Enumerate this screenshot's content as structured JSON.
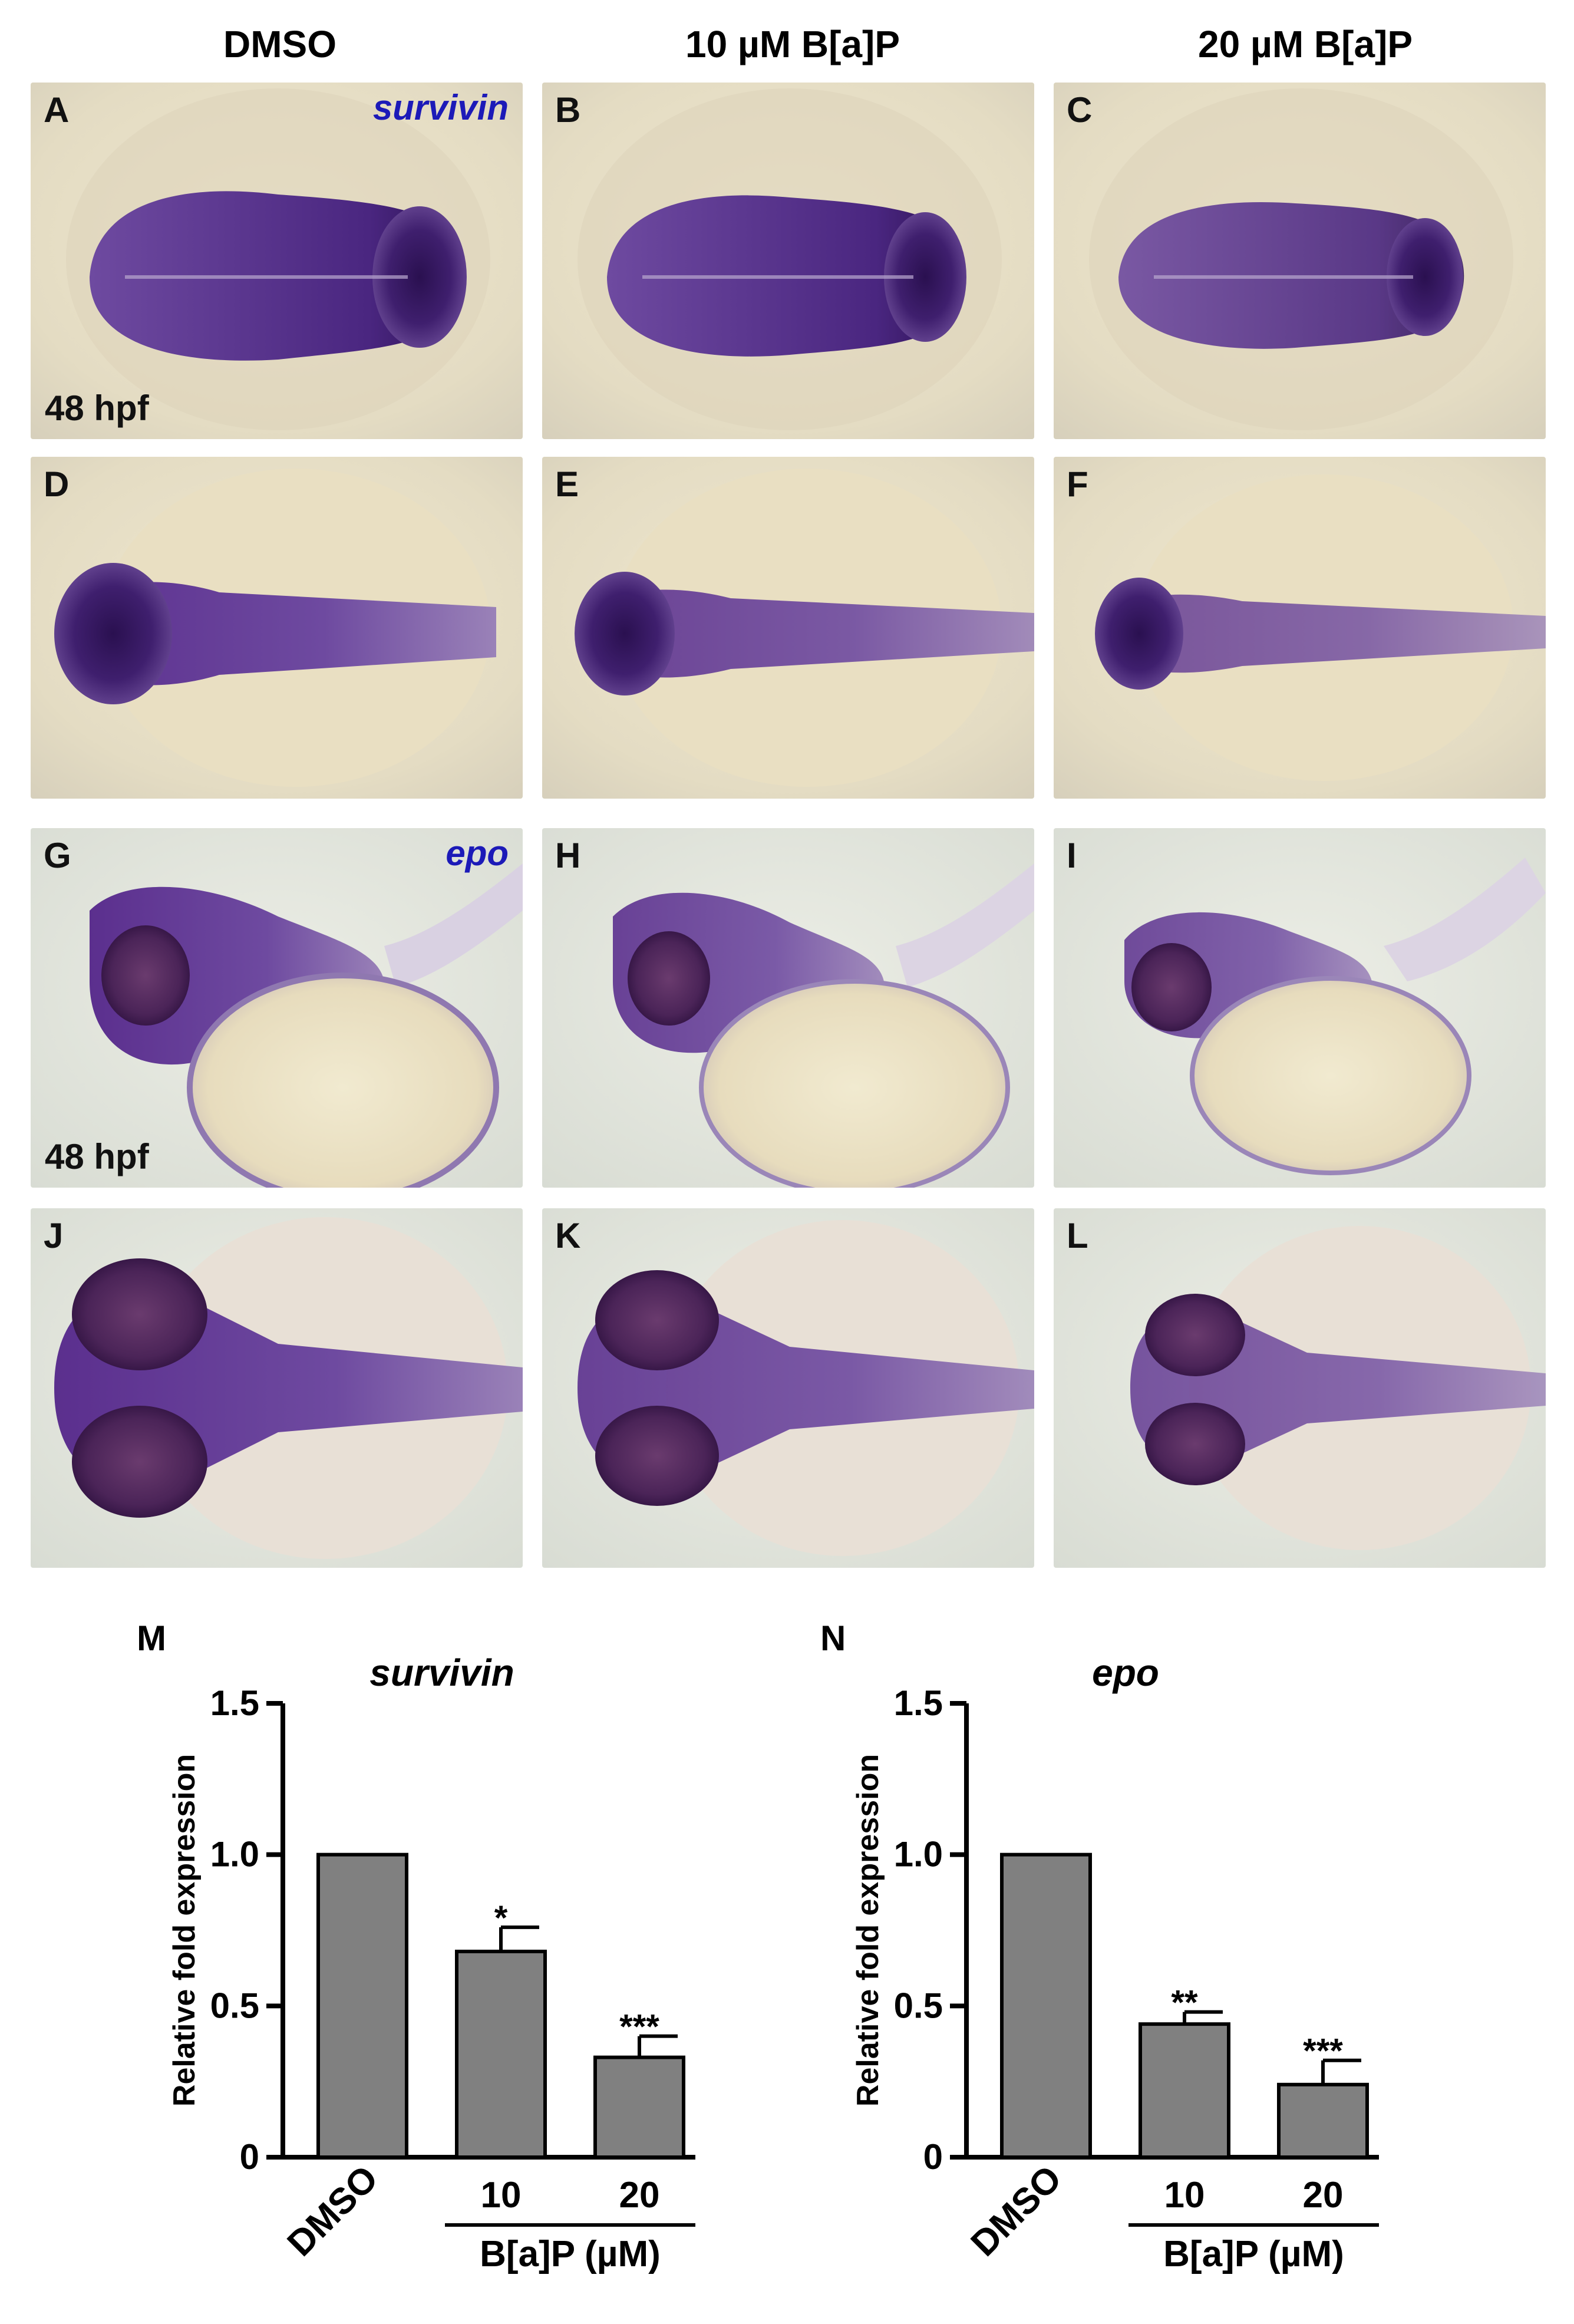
{
  "columns": [
    "DMSO",
    "10 µM  B[a]P",
    "20 µM B[a]P"
  ],
  "panels": [
    {
      "label": "A",
      "gene": "survivin",
      "stage": "48 hpf"
    },
    {
      "label": "B"
    },
    {
      "label": "C"
    },
    {
      "label": "D"
    },
    {
      "label": "E"
    },
    {
      "label": "F"
    },
    {
      "label": "G",
      "gene": "epo",
      "stage": "48 hpf"
    },
    {
      "label": "H"
    },
    {
      "label": "I"
    },
    {
      "label": "J"
    },
    {
      "label": "K"
    },
    {
      "label": "L"
    }
  ],
  "colors": {
    "bar_fill": "#808080",
    "stain": "#5a2d8c",
    "background_light": "#e9e2c8",
    "gene_label": "#1c1ab8"
  },
  "chart_data": [
    {
      "panel": "M",
      "type": "bar",
      "title": "survivin",
      "ylabel": "Relative fold expression",
      "categories": [
        "DMSO",
        "10",
        "20"
      ],
      "group_label": "B[a]P (µM)",
      "values": [
        1.0,
        0.68,
        0.33
      ],
      "errors": [
        0.0,
        0.08,
        0.07
      ],
      "significance": [
        "",
        "*",
        "***"
      ],
      "ylim": [
        0,
        1.5
      ],
      "yticks": [
        {
          "v": 0,
          "t": "0"
        },
        {
          "v": 0.5,
          "t": "0.5"
        },
        {
          "v": 1.0,
          "t": "1.0"
        },
        {
          "v": 1.5,
          "t": "1.5"
        }
      ]
    },
    {
      "panel": "N",
      "type": "bar",
      "title": "epo",
      "ylabel": "Relative fold expression",
      "categories": [
        "DMSO",
        "10",
        "20"
      ],
      "group_label": "B[a]P (µM)",
      "values": [
        1.0,
        0.44,
        0.24
      ],
      "errors": [
        0.0,
        0.04,
        0.08
      ],
      "significance": [
        "",
        "**",
        "***"
      ],
      "ylim": [
        0,
        1.5
      ],
      "yticks": [
        {
          "v": 0,
          "t": "0"
        },
        {
          "v": 0.5,
          "t": "0.5"
        },
        {
          "v": 1.0,
          "t": "1.0"
        },
        {
          "v": 1.5,
          "t": "1.5"
        }
      ]
    }
  ]
}
